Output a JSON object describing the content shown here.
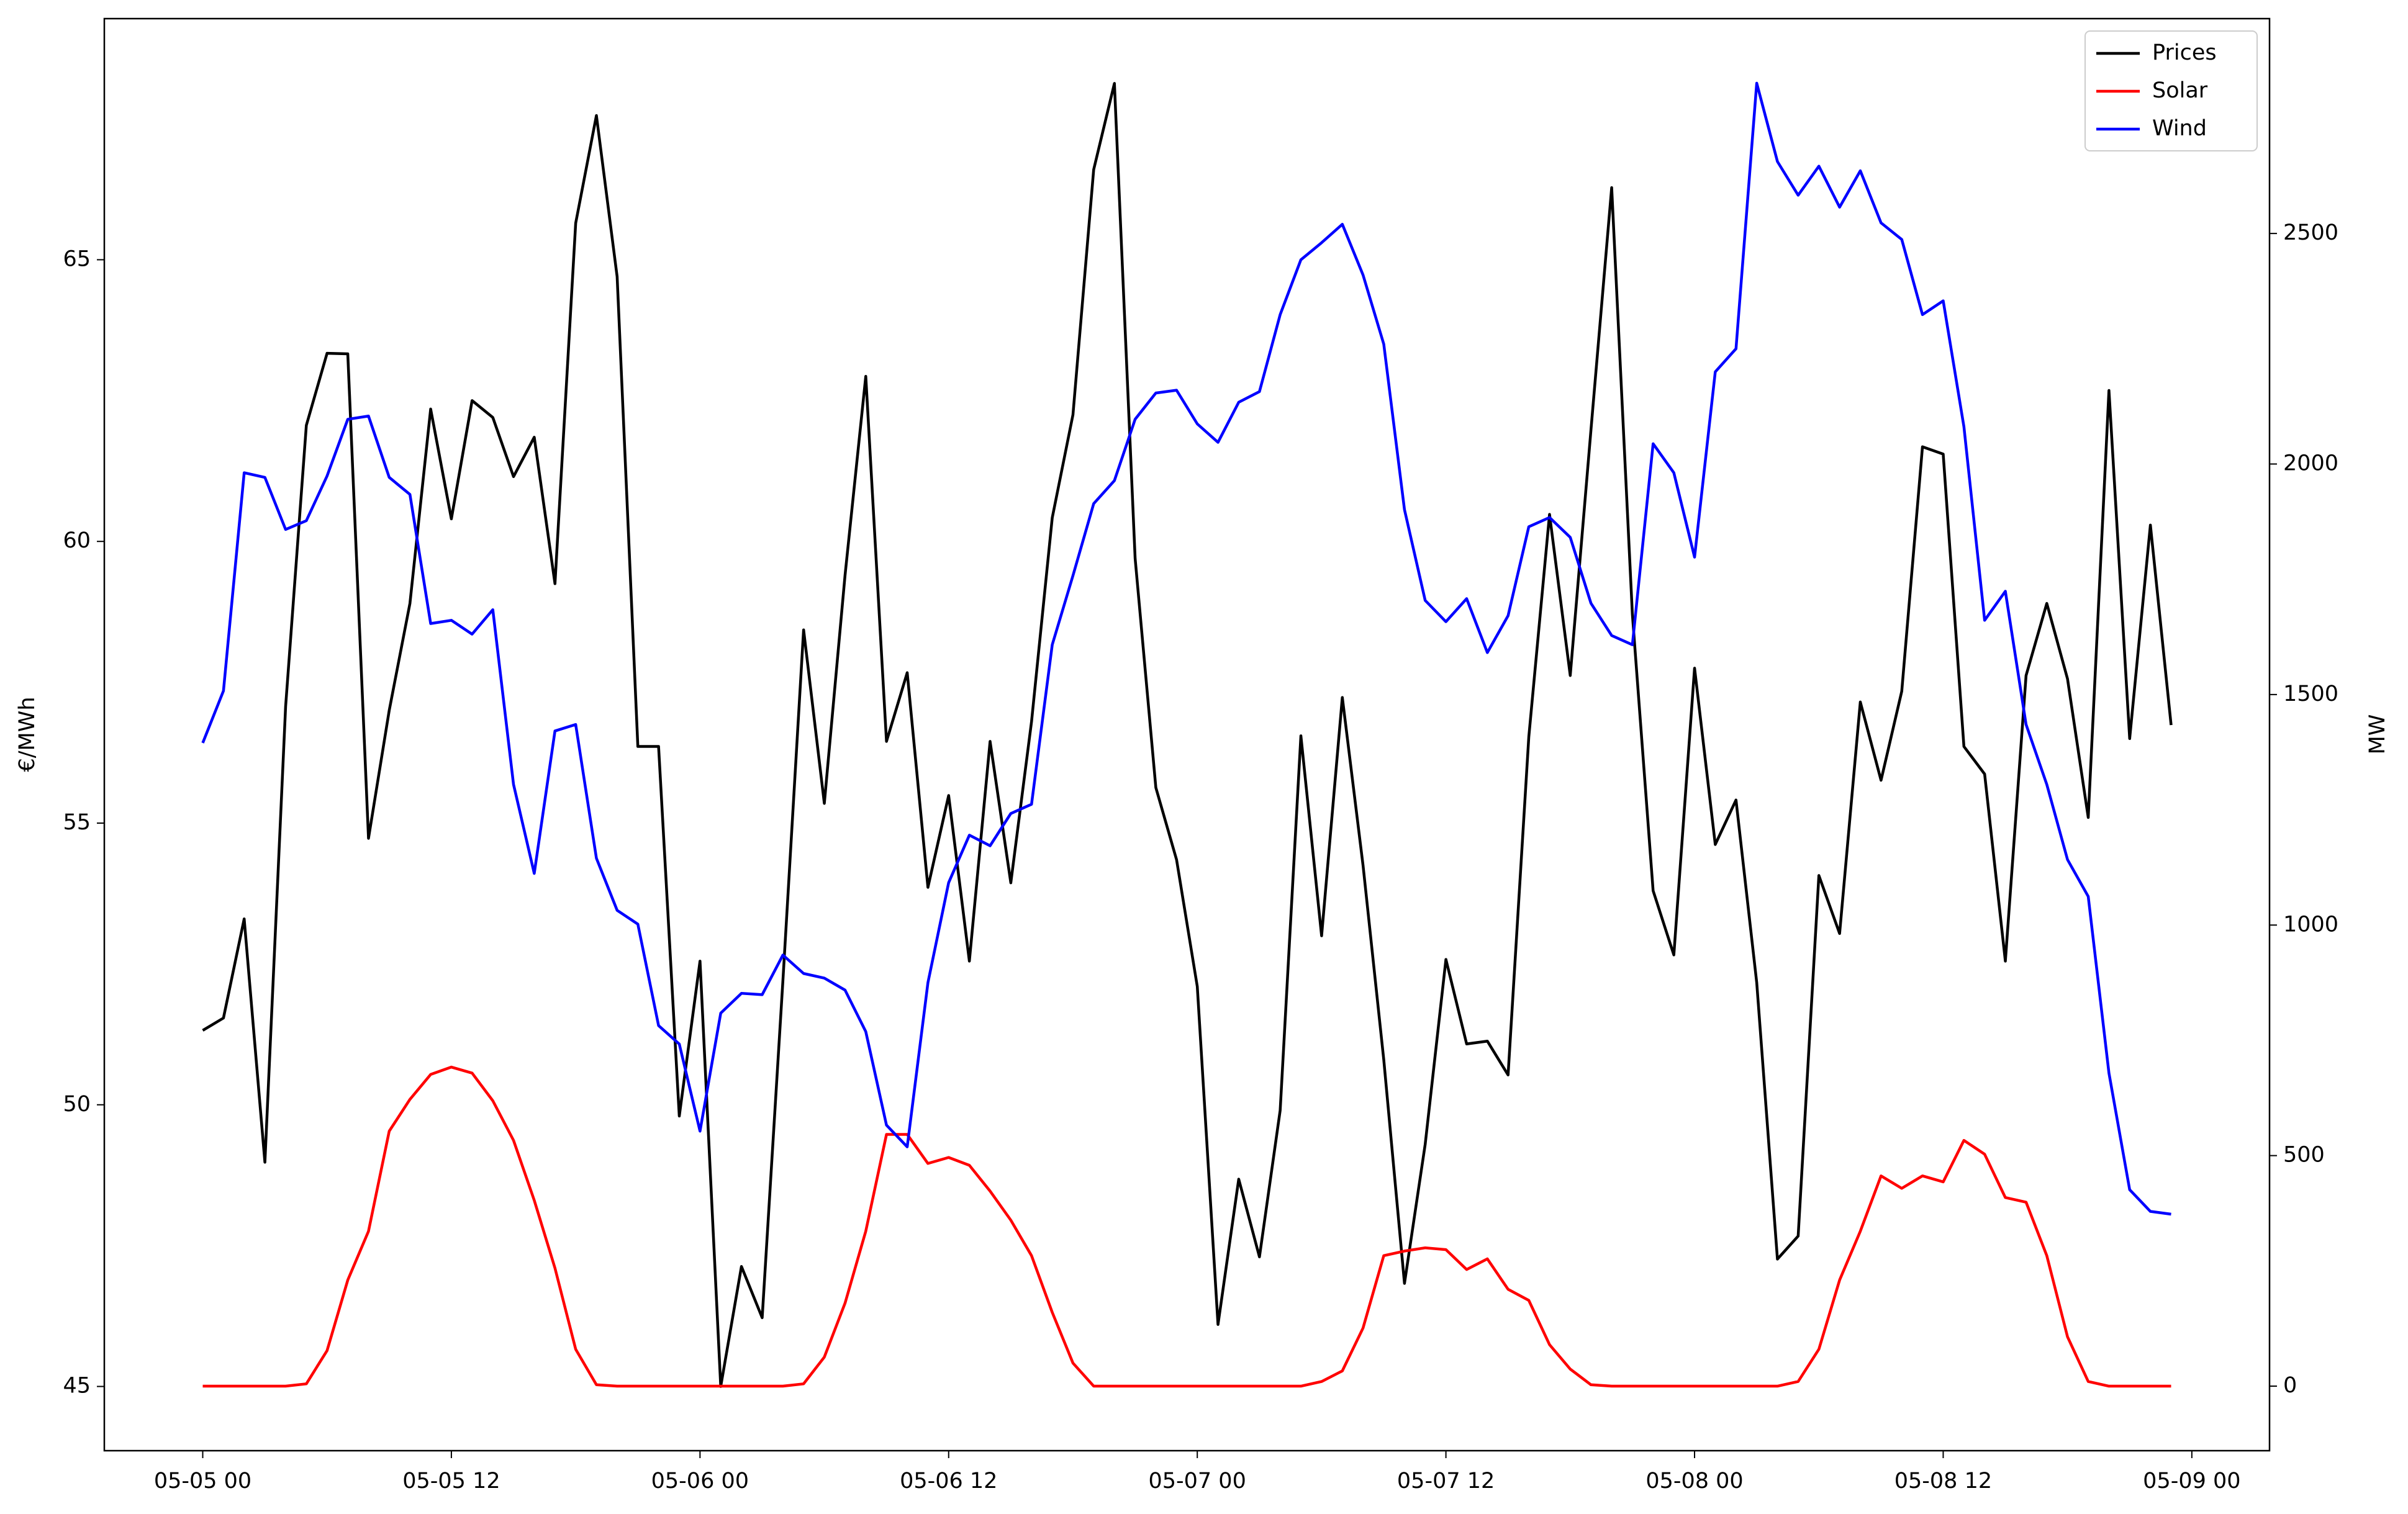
{
  "chart_data": {
    "type": "line",
    "ylabel": "€/MWh",
    "y2label": "MW",
    "x": [
      "05-05 00",
      "05-05 01",
      "05-05 02",
      "05-05 03",
      "05-05 04",
      "05-05 05",
      "05-05 06",
      "05-05 07",
      "05-05 08",
      "05-05 09",
      "05-05 10",
      "05-05 11",
      "05-05 12",
      "05-05 13",
      "05-05 14",
      "05-05 15",
      "05-05 16",
      "05-05 17",
      "05-05 18",
      "05-05 19",
      "05-05 20",
      "05-05 21",
      "05-05 22",
      "05-05 23",
      "05-06 00",
      "05-06 01",
      "05-06 02",
      "05-06 03",
      "05-06 04",
      "05-06 05",
      "05-06 06",
      "05-06 07",
      "05-06 08",
      "05-06 09",
      "05-06 10",
      "05-06 11",
      "05-06 12",
      "05-06 13",
      "05-06 14",
      "05-06 15",
      "05-06 16",
      "05-06 17",
      "05-06 18",
      "05-06 19",
      "05-06 20",
      "05-06 21",
      "05-06 22",
      "05-06 23",
      "05-07 00",
      "05-07 01",
      "05-07 02",
      "05-07 03",
      "05-07 04",
      "05-07 05",
      "05-07 06",
      "05-07 07",
      "05-07 08",
      "05-07 09",
      "05-07 10",
      "05-07 11",
      "05-07 12",
      "05-07 13",
      "05-07 14",
      "05-07 15",
      "05-07 16",
      "05-07 17",
      "05-07 18",
      "05-07 19",
      "05-07 20",
      "05-07 21",
      "05-07 22",
      "05-07 23",
      "05-08 00",
      "05-08 01",
      "05-08 02",
      "05-08 03",
      "05-08 04",
      "05-08 05",
      "05-08 06",
      "05-08 07",
      "05-08 08",
      "05-08 09",
      "05-08 10",
      "05-08 11",
      "05-08 12",
      "05-08 13",
      "05-08 14",
      "05-08 15",
      "05-08 16",
      "05-08 17",
      "05-08 18",
      "05-08 19",
      "05-08 20",
      "05-08 21",
      "05-08 22",
      "05-08 23"
    ],
    "xlim": [
      "05-04 19:15",
      "05-09 03:45"
    ],
    "xticks": [
      "05-05 00",
      "05-05 12",
      "05-06 00",
      "05-06 12",
      "05-07 00",
      "05-07 12",
      "05-08 00",
      "05-08 12",
      "05-09 00"
    ],
    "ylim": [
      43.86,
      69.28
    ],
    "yticks": [
      45,
      50,
      55,
      60,
      65
    ],
    "y2lim": [
      -140,
      2966
    ],
    "y2ticks": [
      0,
      500,
      1000,
      1500,
      2000,
      2500
    ],
    "legend": "upper right",
    "series": [
      {
        "name": "Prices",
        "color": "#000000",
        "axis": "y",
        "values": [
          51.32,
          51.54,
          53.3,
          48.98,
          57.07,
          62.06,
          63.34,
          63.33,
          54.73,
          57.0,
          58.9,
          62.35,
          60.4,
          62.5,
          62.2,
          61.15,
          61.85,
          59.25,
          65.65,
          67.56,
          64.7,
          56.36,
          56.36,
          49.8,
          52.55,
          45.0,
          47.13,
          46.22,
          52.2,
          58.43,
          55.35,
          59.4,
          62.93,
          56.45,
          57.67,
          53.86,
          55.49,
          52.55,
          56.45,
          53.94,
          56.8,
          60.42,
          62.25,
          66.6,
          68.13,
          59.7,
          55.63,
          54.35,
          52.1,
          46.1,
          48.68,
          47.3,
          49.9,
          56.55,
          53.0,
          57.23,
          54.25,
          50.8,
          46.83,
          49.3,
          52.58,
          51.08,
          51.13,
          50.53,
          56.53,
          60.48,
          57.62,
          61.98,
          66.28,
          58.7,
          53.8,
          52.66,
          57.75,
          54.62,
          55.41,
          52.17,
          47.26,
          47.67,
          54.07,
          53.04,
          57.15,
          55.76,
          57.34,
          61.68,
          61.55,
          56.36,
          55.87,
          52.55,
          57.62,
          58.9,
          57.56,
          55.1,
          62.68,
          56.5,
          60.29,
          56.74
        ]
      },
      {
        "name": "Solar",
        "color": "#ff0000",
        "axis": "y2",
        "values": [
          0,
          0,
          0,
          0,
          0,
          5,
          77,
          230,
          336,
          553,
          622,
          676,
          692,
          679,
          619,
          533,
          403,
          256,
          80,
          3,
          0,
          0,
          0,
          0,
          0,
          0,
          0,
          0,
          0,
          5,
          63,
          180,
          336,
          546,
          546,
          483,
          496,
          479,
          423,
          360,
          283,
          160,
          50,
          0,
          0,
          0,
          0,
          0,
          0,
          0,
          0,
          0,
          0,
          0,
          10,
          33,
          126,
          283,
          293,
          300,
          296,
          253,
          276,
          210,
          186,
          90,
          37,
          3,
          0,
          0,
          0,
          0,
          0,
          0,
          0,
          0,
          0,
          10,
          80,
          230,
          336,
          456,
          429,
          456,
          443,
          533,
          503,
          409,
          399,
          283,
          107,
          10,
          0,
          0,
          0,
          0
        ]
      },
      {
        "name": "Wind",
        "color": "#0000ff",
        "axis": "y2",
        "values": [
          1395,
          1508,
          1981,
          1971,
          1858,
          1877,
          1974,
          2097,
          2104,
          1971,
          1934,
          1654,
          1661,
          1631,
          1684,
          1305,
          1112,
          1421,
          1435,
          1145,
          1032,
          1002,
          782,
          742,
          553,
          809,
          852,
          849,
          935,
          895,
          885,
          859,
          769,
          566,
          519,
          875,
          1092,
          1195,
          1172,
          1242,
          1262,
          1608,
          1758,
          1914,
          1964,
          2097,
          2154,
          2160,
          2087,
          2047,
          2134,
          2157,
          2324,
          2443,
          2480,
          2520,
          2410,
          2260,
          1901,
          1704,
          1658,
          1708,
          1591,
          1671,
          1864,
          1884,
          1841,
          1698,
          1628,
          1608,
          2044,
          1981,
          1798,
          2200,
          2250,
          2826,
          2656,
          2583,
          2646,
          2557,
          2636,
          2523,
          2487,
          2324,
          2354,
          2081,
          1661,
          1724,
          1435,
          1305,
          1142,
          1062,
          679,
          426,
          379,
          373
        ]
      }
    ]
  }
}
